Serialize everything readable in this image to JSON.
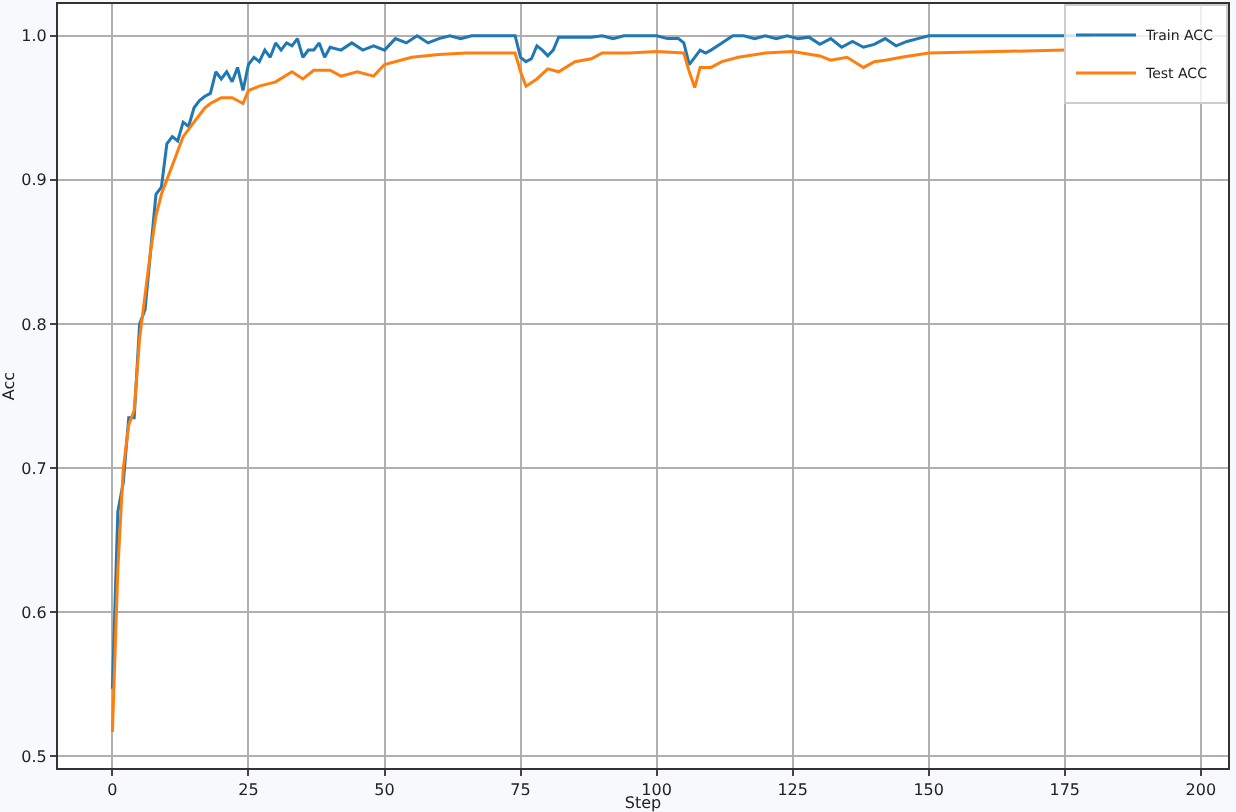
{
  "chart_data": {
    "type": "line",
    "xlabel": "Step",
    "ylabel": "Acc",
    "xlim": [
      -10,
      205
    ],
    "ylim": [
      0.492,
      1.022
    ],
    "xticks": [
      0,
      25,
      50,
      75,
      100,
      125,
      150,
      175,
      200
    ],
    "yticks": [
      0.5,
      0.6,
      0.7,
      0.8,
      0.9,
      {
        "value": 1.0,
        "label": "1.0"
      }
    ],
    "grid": true,
    "legend": "top right",
    "marker": "none",
    "line_style": "solid",
    "series": [
      {
        "name": "Train ACC",
        "color": "#1f77b4",
        "x": [
          0,
          1,
          2,
          3,
          4,
          5,
          6,
          7,
          8,
          9,
          10,
          11,
          12,
          13,
          14,
          15,
          16,
          17,
          18,
          19,
          20,
          21,
          22,
          23,
          24,
          25,
          26,
          27,
          28,
          29,
          30,
          31,
          32,
          33,
          34,
          35,
          36,
          37,
          38,
          39,
          40,
          42,
          44,
          46,
          48,
          50,
          52,
          54,
          56,
          58,
          60,
          62,
          64,
          66,
          68,
          70,
          72,
          74,
          75,
          76,
          77,
          78,
          79,
          80,
          81,
          82,
          84,
          86,
          88,
          90,
          92,
          94,
          96,
          98,
          100,
          102,
          104,
          105,
          106,
          107,
          108,
          109,
          110,
          112,
          114,
          116,
          118,
          120,
          122,
          124,
          126,
          128,
          130,
          132,
          134,
          136,
          138,
          140,
          142,
          144,
          146,
          148,
          150,
          160,
          175,
          180
        ],
        "values": [
          0.547,
          0.67,
          0.69,
          0.735,
          0.735,
          0.8,
          0.81,
          0.85,
          0.89,
          0.895,
          0.925,
          0.93,
          0.927,
          0.94,
          0.937,
          0.95,
          0.955,
          0.958,
          0.96,
          0.975,
          0.97,
          0.975,
          0.968,
          0.978,
          0.962,
          0.98,
          0.985,
          0.982,
          0.99,
          0.985,
          0.995,
          0.99,
          0.995,
          0.993,
          0.998,
          0.985,
          0.99,
          0.99,
          0.995,
          0.985,
          0.992,
          0.99,
          0.995,
          0.99,
          0.993,
          0.99,
          0.998,
          0.995,
          1.0,
          0.995,
          0.998,
          1.0,
          0.998,
          1.0,
          1.0,
          1.0,
          1.0,
          1.0,
          0.985,
          0.982,
          0.984,
          0.993,
          0.99,
          0.986,
          0.99,
          0.999,
          0.999,
          0.999,
          0.999,
          1.0,
          0.998,
          1.0,
          1.0,
          1.0,
          1.0,
          0.998,
          0.998,
          0.995,
          0.98,
          0.985,
          0.99,
          0.988,
          0.99,
          0.995,
          1.0,
          1.0,
          0.998,
          1.0,
          0.998,
          1.0,
          0.998,
          0.999,
          0.994,
          0.998,
          0.992,
          0.996,
          0.992,
          0.994,
          0.998,
          0.993,
          0.996,
          0.998,
          1.0,
          1.0,
          1.0,
          1.0
        ]
      },
      {
        "name": "Test ACC",
        "color": "#ff7f0e",
        "x": [
          0,
          1,
          2,
          3,
          4,
          5,
          6,
          7,
          8,
          9,
          10,
          11,
          12,
          13,
          14,
          15,
          16,
          17,
          18,
          19,
          20,
          22,
          24,
          25,
          27,
          30,
          33,
          35,
          37,
          40,
          42,
          45,
          48,
          50,
          55,
          60,
          65,
          70,
          74,
          75,
          76,
          78,
          80,
          82,
          85,
          88,
          90,
          95,
          100,
          105,
          106,
          107,
          108,
          110,
          112,
          115,
          120,
          125,
          130,
          132,
          135,
          138,
          140,
          142,
          145,
          150,
          175
        ],
        "values": [
          0.517,
          0.63,
          0.7,
          0.73,
          0.74,
          0.79,
          0.82,
          0.85,
          0.875,
          0.89,
          0.9,
          0.91,
          0.92,
          0.93,
          0.935,
          0.94,
          0.945,
          0.95,
          0.953,
          0.955,
          0.957,
          0.957,
          0.953,
          0.962,
          0.965,
          0.968,
          0.975,
          0.97,
          0.976,
          0.976,
          0.972,
          0.975,
          0.972,
          0.98,
          0.985,
          0.987,
          0.988,
          0.988,
          0.988,
          0.975,
          0.965,
          0.97,
          0.977,
          0.975,
          0.982,
          0.984,
          0.988,
          0.988,
          0.989,
          0.988,
          0.975,
          0.964,
          0.978,
          0.978,
          0.982,
          0.985,
          0.988,
          0.989,
          0.986,
          0.983,
          0.985,
          0.978,
          0.982,
          0.983,
          0.985,
          0.988,
          0.99
        ]
      }
    ]
  }
}
